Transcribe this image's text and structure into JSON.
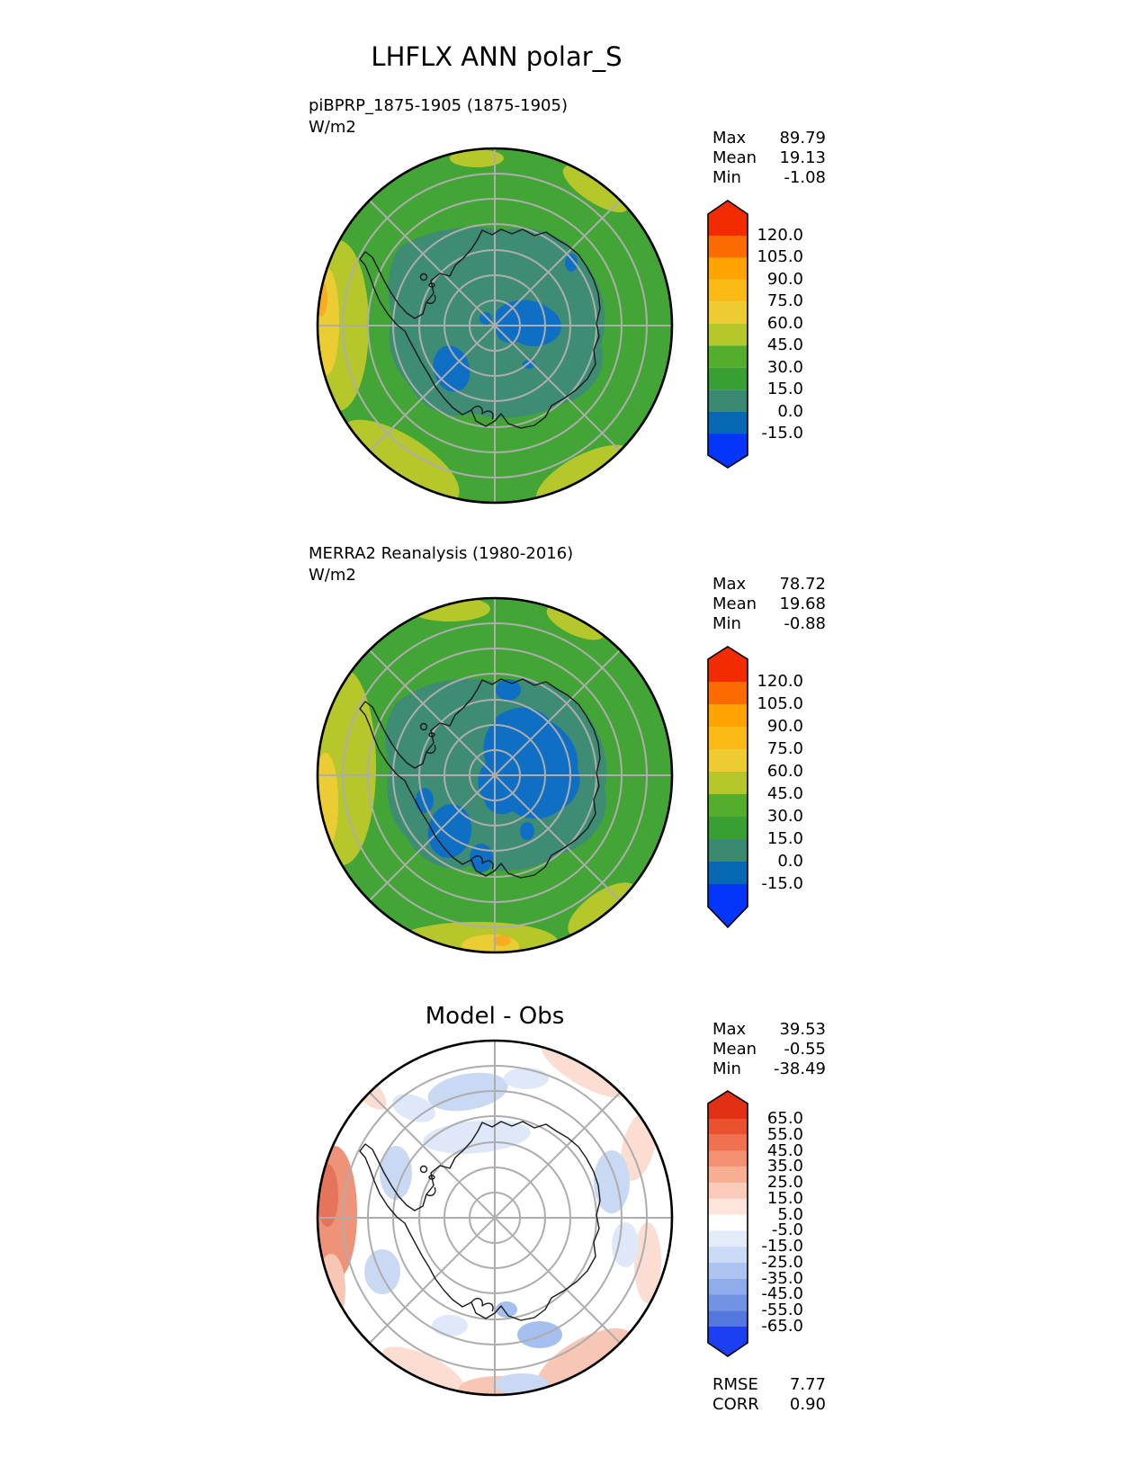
{
  "title": "LHFLX ANN polar_S",
  "colors": {
    "background": "#FFFFFF",
    "text": "#000000",
    "graticule": "#ADADAD",
    "coastline": "#1A1A1A",
    "ocean_green": "#44A537",
    "teal": "#3E8C74",
    "lake_blue": "#0F6FC4",
    "yellow_green": "#B5C72A",
    "yellow": "#EBCD33",
    "orange": "#F6AD21",
    "diff_red_strong": "#E4745A",
    "diff_red": "#EE9377",
    "diff_pink": "#F7C6B4",
    "diff_pink_light": "#FBDDD2",
    "diff_blue": "#C9D9F4",
    "diff_blue_light": "#DEE8F9",
    "diff_blue_strong": "#A5BFEF"
  },
  "panels": [
    {
      "id": "model",
      "label_line1": "piBPRP_1875-1905 (1875-1905)",
      "label_line2": "W/m2",
      "stats": [
        {
          "name": "Max",
          "value": "89.79"
        },
        {
          "name": "Mean",
          "value": "19.13"
        },
        {
          "name": "Min",
          "value": "-1.08"
        }
      ],
      "colorbar": {
        "tick_labels": [
          "120.0",
          "105.0",
          "90.0",
          "75.0",
          "60.0",
          "45.0",
          "30.0",
          "15.0",
          "0.0",
          "-15.0"
        ],
        "colors": [
          "#F32B00",
          "#FB6B00",
          "#FFA300",
          "#FCBA16",
          "#EDCB31",
          "#B5C72A",
          "#54AD2B",
          "#389F33",
          "#3A8A71",
          "#0769B4",
          "#0435FB"
        ]
      }
    },
    {
      "id": "obs",
      "label_line1": "MERRA2 Reanalysis (1980-2016)",
      "label_line2": "W/m2",
      "stats": [
        {
          "name": "Max",
          "value": "78.72"
        },
        {
          "name": "Mean",
          "value": "19.68"
        },
        {
          "name": "Min",
          "value": "-0.88"
        }
      ],
      "colorbar": {
        "tick_labels": [
          "120.0",
          "105.0",
          "90.0",
          "75.0",
          "60.0",
          "45.0",
          "30.0",
          "15.0",
          "0.0",
          "-15.0"
        ],
        "colors": [
          "#F32B00",
          "#FB6B00",
          "#FFA300",
          "#FCBA16",
          "#EDCB31",
          "#B5C72A",
          "#54AD2B",
          "#389F33",
          "#3A8A71",
          "#0769B4",
          "#0435FB"
        ]
      }
    },
    {
      "id": "diff",
      "title": "Model - Obs",
      "stats": [
        {
          "name": "Max",
          "value": "39.53"
        },
        {
          "name": "Mean",
          "value": "-0.55"
        },
        {
          "name": "Min",
          "value": "-38.49"
        }
      ],
      "metrics": [
        {
          "name": "RMSE",
          "value": "7.77"
        },
        {
          "name": "CORR",
          "value": "0.90"
        }
      ],
      "colorbar": {
        "tick_labels": [
          "65.0",
          "55.0",
          "45.0",
          "35.0",
          "25.0",
          "15.0",
          "5.0",
          "-5.0",
          "-15.0",
          "-25.0",
          "-35.0",
          "-45.0",
          "-55.0",
          "-65.0"
        ],
        "colors": [
          "#E23014",
          "#E9512F",
          "#EF7150",
          "#F39071",
          "#F7AE93",
          "#FACBB8",
          "#FDE5DB",
          "#FFFFFF",
          "#E4ECFA",
          "#CBDAF6",
          "#AEC4F0",
          "#90ABEA",
          "#7292E4",
          "#5377DD",
          "#1D3FF2"
        ]
      }
    }
  ],
  "chart_data": [
    {
      "type": "heatmap",
      "variable": "LHFLX",
      "season": "ANN",
      "region": "polar_S",
      "projection": "south polar stereographic",
      "title": "piBPRP_1875-1905 (1875-1905)",
      "units": "W/m2",
      "contour_levels": [
        -15.0,
        0.0,
        15.0,
        30.0,
        45.0,
        60.0,
        75.0,
        90.0,
        105.0,
        120.0
      ],
      "stats": {
        "max": 89.79,
        "mean": 19.13,
        "min": -1.08
      },
      "pattern": "ocean ring 30-45 W/m2 green; 45-75 yellow-green/yellow near west rim with small 75-90 orange patch; Antarctic interior 0-15 teal; sub-zero blue patches near the pole",
      "legend_position": "right vertical colorbar with extend arrows both ends"
    },
    {
      "type": "heatmap",
      "variable": "LHFLX",
      "season": "ANN",
      "region": "polar_S",
      "projection": "south polar stereographic",
      "title": "MERRA2 Reanalysis (1980-2016)",
      "units": "W/m2",
      "contour_levels": [
        -15.0,
        0.0,
        15.0,
        30.0,
        45.0,
        60.0,
        75.0,
        90.0,
        105.0,
        120.0
      ],
      "stats": {
        "max": 78.72,
        "mean": 19.68,
        "min": -0.88
      },
      "pattern": "ocean ring 30-45 W/m2 green; broader 45-75 yellow-green along west and south rim; interior 0-15 teal with larger sub-zero blue region east of the pole",
      "legend_position": "right vertical colorbar with extend arrows both ends"
    },
    {
      "type": "heatmap",
      "variable": "LHFLX difference",
      "season": "ANN",
      "region": "polar_S",
      "projection": "south polar stereographic",
      "title": "Model - Obs",
      "units": "W/m2",
      "contour_levels": [
        -65.0,
        -55.0,
        -45.0,
        -35.0,
        -25.0,
        -15.0,
        -5.0,
        5.0,
        15.0,
        25.0,
        35.0,
        45.0,
        55.0,
        65.0
      ],
      "stats": {
        "max": 39.53,
        "mean": -0.55,
        "min": -38.49
      },
      "metrics": {
        "RMSE": 7.77,
        "CORR": 0.9
      },
      "pattern": "mostly white (-5 to 5); positive red patches along western and southern rim; weak negative blue patches scattered over ocean ring and near coast",
      "legend_position": "right vertical colorbar with extend arrows both ends"
    }
  ]
}
